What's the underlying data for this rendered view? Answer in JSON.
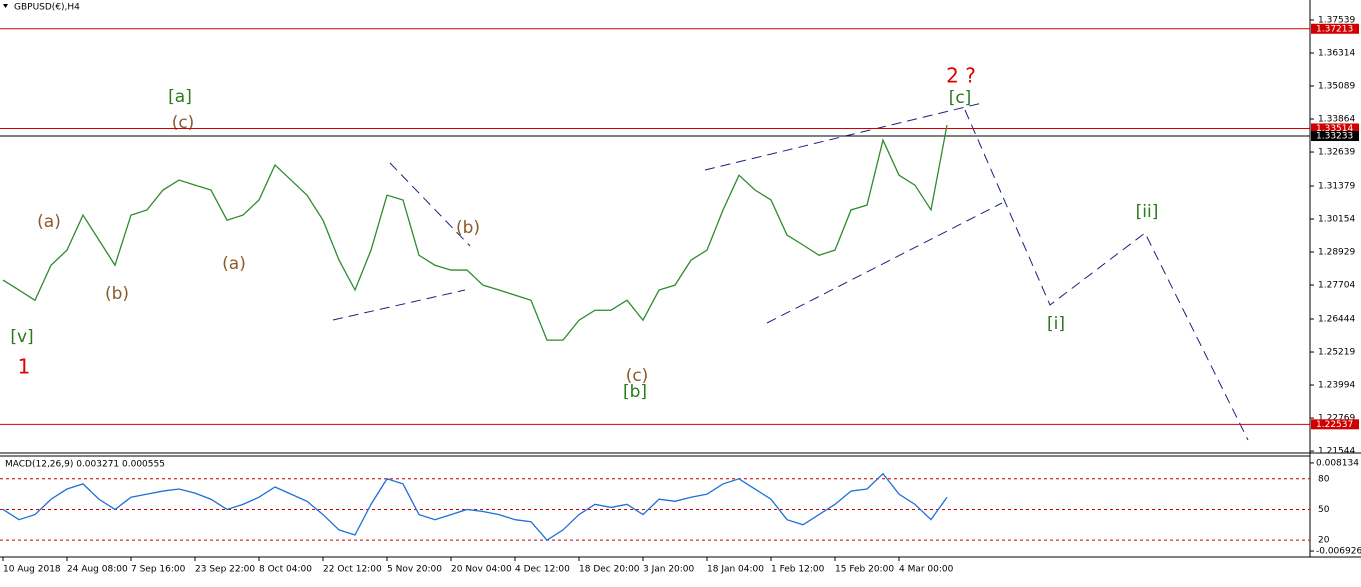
{
  "chart_data": [
    {
      "type": "line",
      "title": "GBPUSD(€),H4",
      "categories": [
        "10 Aug 2018",
        null,
        null,
        null,
        "24 Aug 08:00",
        null,
        null,
        null,
        "7 Sep 16:00",
        null,
        null,
        null,
        "23 Sep 22:00",
        null,
        null,
        null,
        "8 Oct 04:00",
        null,
        null,
        null,
        "22 Oct 12:00",
        null,
        null,
        null,
        "5 Nov 20:00",
        null,
        null,
        null,
        "20 Nov 04:00",
        null,
        null,
        null,
        "4 Dec 12:00",
        null,
        null,
        null,
        "18 Dec 20:00",
        null,
        null,
        null,
        "3 Jan 20:00",
        null,
        null,
        null,
        "18 Jan 04:00",
        null,
        null,
        null,
        "1 Feb 12:00",
        null,
        null,
        null,
        "15 Feb 20:00",
        null,
        null,
        null,
        "4 Mar 00:00",
        null,
        null,
        null
      ],
      "series": [
        {
          "color": "#2e8b2e",
          "values": [
            1.2789,
            1.2752,
            1.2714,
            1.2844,
            1.29,
            1.303,
            1.2937,
            1.2844,
            1.303,
            1.3049,
            1.3123,
            1.316,
            1.3141,
            1.3123,
            1.3011,
            1.303,
            1.3086,
            1.3216,
            1.316,
            1.3104,
            1.3011,
            1.2863,
            1.2752,
            1.29,
            1.3104,
            1.3086,
            1.2881,
            1.2844,
            1.2826,
            1.2826,
            1.277,
            1.2752,
            1.2733,
            1.2714,
            1.2566,
            1.2566,
            1.264,
            1.2677,
            1.2677,
            1.2714,
            1.264,
            1.2752,
            1.277,
            1.2863,
            1.29,
            1.3049,
            1.3178,
            1.3123,
            1.3086,
            1.2956,
            1.2919,
            1.2881,
            1.29,
            1.3049,
            1.3067,
            1.3308,
            1.3178,
            1.3141,
            1.3049,
            1.3364
          ]
        }
      ],
      "ylim": [
        1.2151,
        1.3828
      ],
      "yticks": [
        1.37539,
        1.36314,
        1.35089,
        1.33864,
        1.32639,
        1.31379,
        1.30154,
        1.28929,
        1.27704,
        1.26444,
        1.25219,
        1.23994,
        1.22769,
        1.21544
      ],
      "hlines": [
        {
          "value": 1.37213,
          "color": "#d00000"
        },
        {
          "value": 1.33514,
          "color": "#d00000"
        },
        {
          "value": 1.33233,
          "color": "#000000"
        },
        {
          "value": 1.22537,
          "color": "#d00000"
        }
      ],
      "annotations": [
        "[a]",
        "(c)",
        "(a)",
        "(b)",
        "[v]",
        "1",
        "(a)",
        "(b)",
        "(c)",
        "[b]",
        "2 ?",
        "[c]",
        "[ii]",
        "[i]"
      ]
    },
    {
      "type": "line",
      "title": "MACD(12,26,9) 0.003271 0.000555",
      "series": [
        {
          "color": "#1e6fd9",
          "values": [
            50,
            40,
            45,
            60,
            70,
            75,
            60,
            50,
            62,
            65,
            68,
            70,
            66,
            60,
            50,
            55,
            62,
            72,
            65,
            58,
            45,
            30,
            25,
            55,
            80,
            75,
            45,
            40,
            45,
            50,
            48,
            45,
            40,
            38,
            20,
            30,
            45,
            55,
            52,
            55,
            45,
            60,
            58,
            62,
            65,
            75,
            80,
            70,
            60,
            40,
            35,
            45,
            55,
            68,
            70,
            85,
            65,
            55,
            40,
            62
          ]
        }
      ],
      "ylim": [
        3.5,
        102.3
      ],
      "yticks": [
        80,
        50,
        20
      ],
      "y2lim": [
        -0.007941,
        0.009318
      ],
      "y2ticks": [
        0.008134,
        -0.006926
      ]
    }
  ]
}
